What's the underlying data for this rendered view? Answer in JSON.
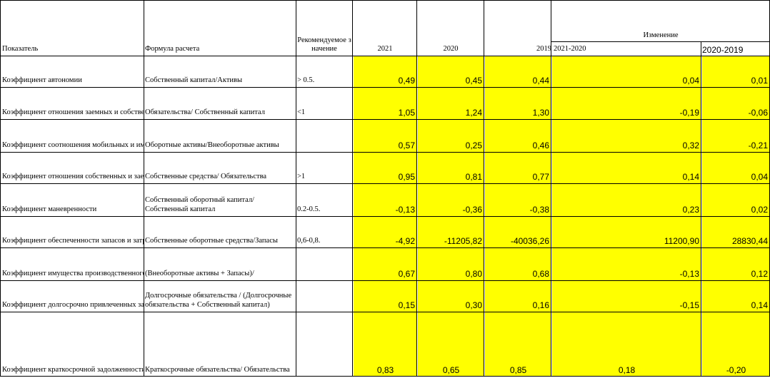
{
  "header": {
    "indicator": "Показатель",
    "formula": "Формула расчета",
    "recommended": "Рекомендуемое значение",
    "y2021": "2021",
    "y2020": "2020",
    "y2019": "2019",
    "change": "Изменение",
    "d2021_2020": "2021-2020",
    "d2020_2019": "2020-2019"
  },
  "rows": [
    {
      "name": "Коэффициент автономии",
      "formula": "Собственный капитал/Активы",
      "rec": "> 0.5.",
      "v2021": "0,49",
      "v2020": "0,45",
      "v2019": "0,44",
      "d1": "0,04",
      "d2": "0,01"
    },
    {
      "name": "Коэффициент отношения заемных и собственных средств",
      "formula": "Обязательства/ Собственный капитал",
      "rec": "<1",
      "v2021": "1,05",
      "v2020": "1,24",
      "v2019": "1,30",
      "d1": "-0,19",
      "d2": "-0,06"
    },
    {
      "name": "Коэффициент соотношения мобильных и иммобилизованных средств",
      "formula": "Оборотные активы/Внеоборотные активы",
      "rec": "",
      "v2021": "0,57",
      "v2020": "0,25",
      "v2019": "0,46",
      "d1": "0,32",
      "d2": "-0,21"
    },
    {
      "name": "Коэффициент отношения собственных и заемных средств",
      "formula": "Собственные средства/ Обязательства",
      "rec": ">1",
      "v2021": "0,95",
      "v2020": "0,81",
      "v2019": "0,77",
      "d1": "0,14",
      "d2": "0,04"
    },
    {
      "name": "Коэффициент маневренности",
      "formula": "Собственный оборотный капитал/Собственный капитал",
      "rec": "0.2-0.5.",
      "v2021": "-0,13",
      "v2020": "-0,36",
      "v2019": "-0,38",
      "d1": "0,23",
      "d2": "0,02"
    },
    {
      "name": "Коэффициент обеспеченности запасов и затрат",
      "formula": "Собственные оборотные средства/Запасы",
      "rec": "0,6-0,8.",
      "v2021": "-4,92",
      "v2020": "-11205,82",
      "v2019": "-40036,26",
      "d1": "11200,90",
      "d2": "28830,44"
    },
    {
      "name": "Коэффициент имущества производственного назначения",
      "formula": "(Внеоборотные активы + Запасы)/",
      "rec": "",
      "v2021": "0,67",
      "v2020": "0,80",
      "v2019": "0,68",
      "d1": "-0,13",
      "d2": "0,12"
    },
    {
      "name": "Коэффициент долгосрочно привлеченных заемных средств",
      "formula": "Долгосрочные обязательства / (Долгосрочные обязательства + Собственный капитал)",
      "rec": "",
      "v2021": "0,15",
      "v2020": "0,30",
      "v2019": "0,16",
      "d1": "-0,15",
      "d2": "0,14"
    },
    {
      "name": "Коэффициент краткосрочной задолженности",
      "formula": "Краткосрочные обязательства/ Обязательства",
      "rec": "",
      "v2021": "0,83",
      "v2020": "0,65",
      "v2019": "0,85",
      "d1": "0,18",
      "d2": "-0,20"
    }
  ]
}
